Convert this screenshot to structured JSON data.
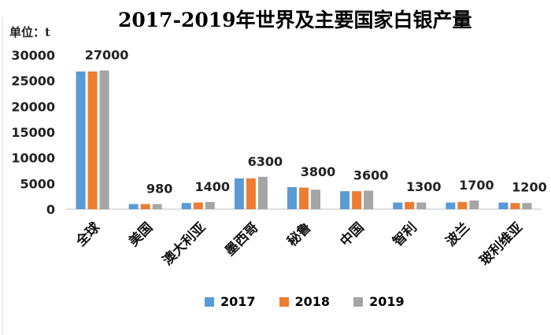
{
  "chart_data": {
    "type": "bar",
    "title": "2017-2019年世界及主要国家白银产量",
    "ylabel": "单位：t",
    "xlabel": "",
    "ylim": [
      0,
      30000
    ],
    "yticks": [
      0,
      5000,
      10000,
      15000,
      20000,
      25000,
      30000
    ],
    "categories": [
      "全球",
      "美国",
      "澳大利亚",
      "墨西哥",
      "秘鲁",
      "中国",
      "智利",
      "波兰",
      "玻利维亚"
    ],
    "series": [
      {
        "name": "2017",
        "color": "#5b9bd5",
        "values": [
          26800,
          1000,
          1200,
          6000,
          4300,
          3500,
          1300,
          1300,
          1300
        ]
      },
      {
        "name": "2018",
        "color": "#ed7d31",
        "values": [
          26800,
          1000,
          1300,
          6000,
          4200,
          3500,
          1400,
          1400,
          1200
        ]
      },
      {
        "name": "2019",
        "color": "#a5a5a5",
        "values": [
          27000,
          980,
          1400,
          6300,
          3800,
          3600,
          1300,
          1700,
          1200
        ]
      }
    ],
    "data_labels": [
      "27000",
      "980",
      "1400",
      "6300",
      "3800",
      "3600",
      "1300",
      "1700",
      "1200"
    ],
    "grid": false,
    "legend": "bottom"
  }
}
